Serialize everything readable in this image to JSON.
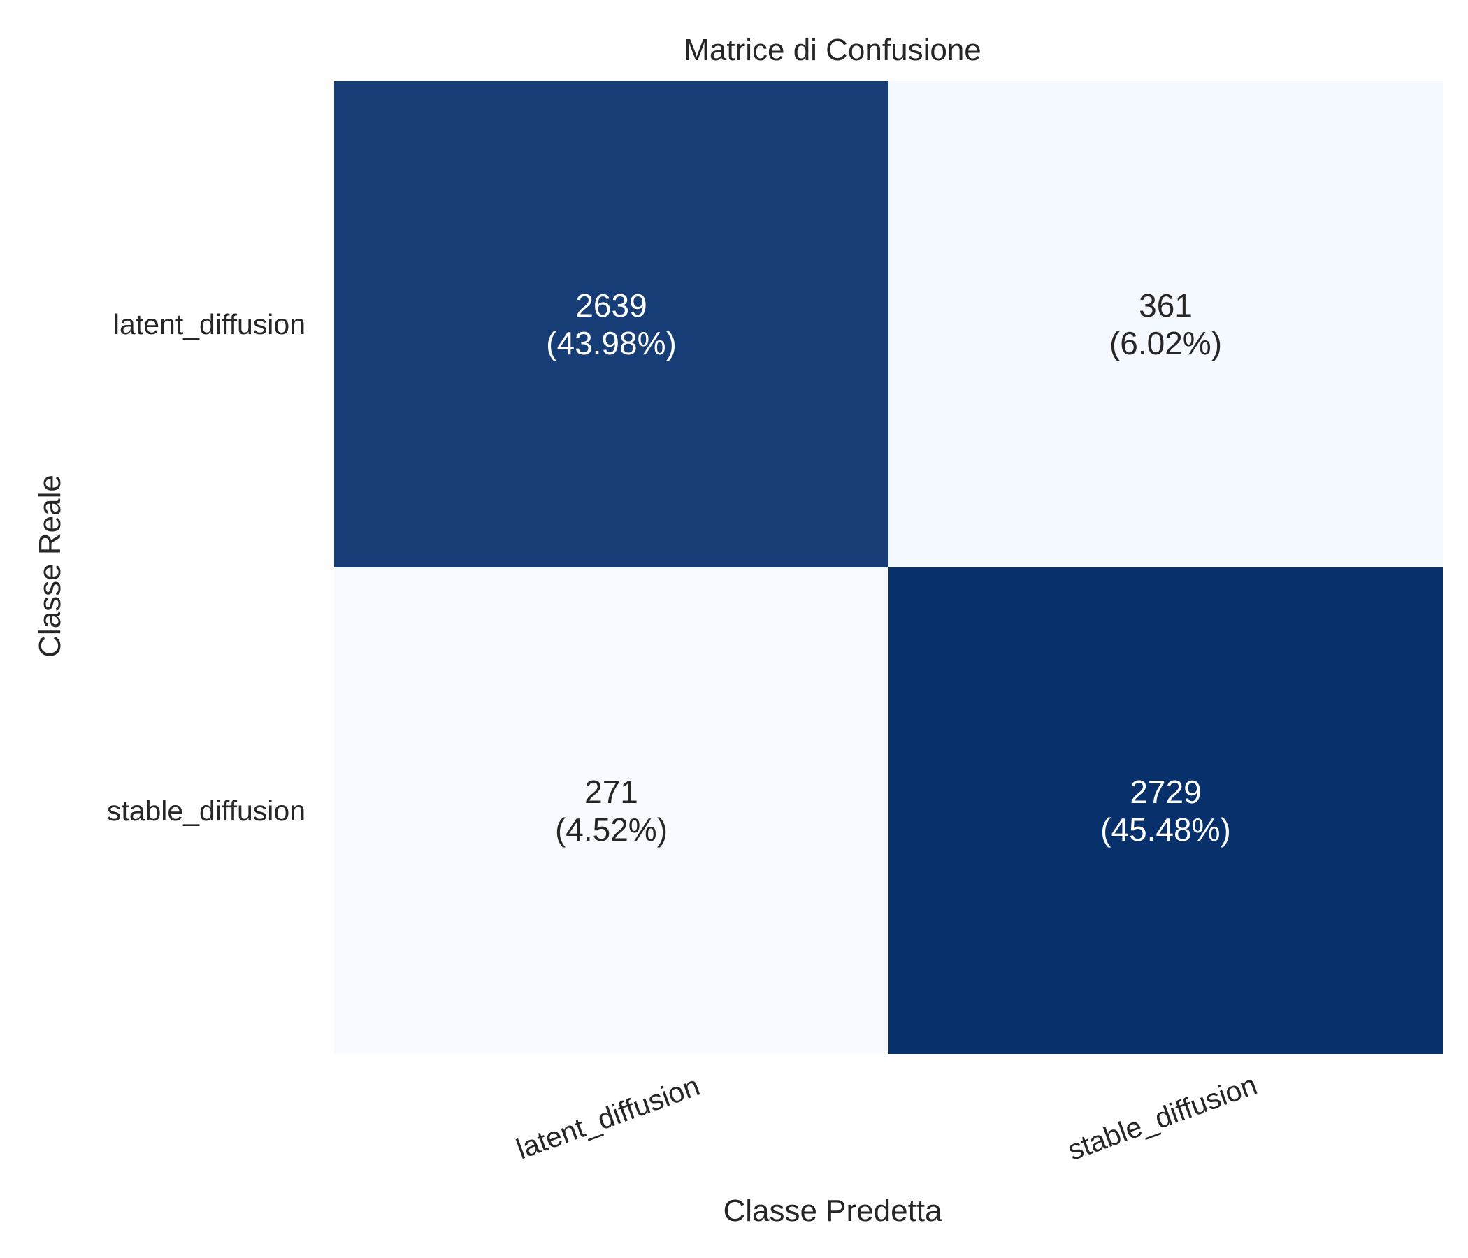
{
  "chart_data": {
    "type": "heatmap",
    "title": "Matrice di Confusione",
    "xlabel": "Classe Predetta",
    "ylabel": "Classe Reale",
    "x_categories": [
      "latent_diffusion",
      "stable_diffusion"
    ],
    "y_categories": [
      "latent_diffusion",
      "stable_diffusion"
    ],
    "values": [
      [
        2639,
        361
      ],
      [
        271,
        2729
      ]
    ],
    "percentages": [
      [
        "(43.98%)",
        "(6.02%)"
      ],
      [
        "(4.52%)",
        "(45.48%)"
      ]
    ],
    "colormap": "Blues",
    "colors": {
      "high": "#08306b",
      "low": "#f7fbff",
      "text_dark": "#262626",
      "text_light": "#ffffff"
    },
    "grid": false,
    "colorbar": false
  }
}
